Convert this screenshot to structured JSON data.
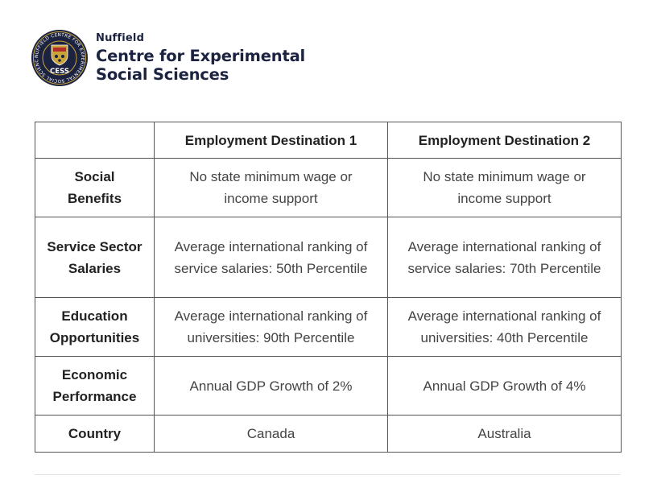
{
  "header": {
    "logo": {
      "icon": "cess-seal-logo",
      "ring_text": "NUFFIELD CENTRE FOR EXPERIMENTAL SOCIAL SCIENCES",
      "center_text": "CESS"
    },
    "org_small": "Nuffield",
    "org_line1": "Centre for Experimental",
    "org_line2": "Social Sciences"
  },
  "table": {
    "columns": [
      "",
      "Employment Destination 1",
      "Employment Destination 2"
    ],
    "rows": [
      {
        "label": "Social Benefits",
        "values": [
          "No state minimum wage or income support",
          "No state minimum wage or income support"
        ]
      },
      {
        "label": "Service Sector Salaries",
        "values": [
          "Average international ranking of service salaries: 50th Percentile",
          "Average international ranking of service salaries: 70th Percentile"
        ]
      },
      {
        "label": "Education Opportunities",
        "values": [
          "Average international ranking of universities: 90th Percentile",
          "Average international ranking of universities: 40th Percentile"
        ]
      },
      {
        "label": "Economic Performance",
        "values": [
          "Annual GDP Growth of 2%",
          "Annual GDP Growth of 4%"
        ]
      },
      {
        "label": "Country",
        "values": [
          "Canada",
          "Australia"
        ]
      }
    ]
  },
  "colors": {
    "brand_navy": "#1c2340",
    "seal_gold": "#c9a43a",
    "table_border": "#555555",
    "label_text": "#222222",
    "value_text": "#444444"
  }
}
